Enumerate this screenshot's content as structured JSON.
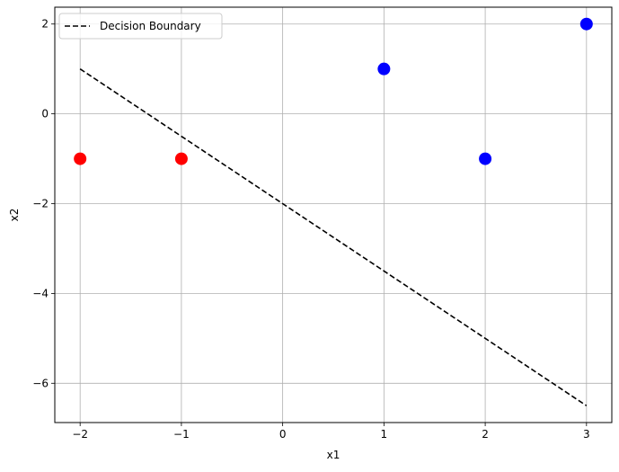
{
  "chart_data": {
    "type": "scatter",
    "title": "",
    "xlabel": "x1",
    "ylabel": "x2",
    "xlim": [
      -2.25,
      3.25
    ],
    "ylim": [
      -6.875,
      2.375
    ],
    "x_ticks": [
      -2,
      -1,
      0,
      1,
      2,
      3
    ],
    "y_ticks": [
      -6,
      -4,
      -2,
      0,
      2
    ],
    "grid": true,
    "legend_placement": "upper-left",
    "points": [
      {
        "x": -2,
        "y": -1,
        "class": "red"
      },
      {
        "x": -1,
        "y": -1,
        "class": "red"
      },
      {
        "x": 1,
        "y": 1,
        "class": "blue"
      },
      {
        "x": 2,
        "y": -1,
        "class": "blue"
      },
      {
        "x": 3,
        "y": 2,
        "class": "blue"
      }
    ],
    "boundary": {
      "name": "Decision Boundary",
      "style": "dashed",
      "color": "#000000",
      "points": [
        {
          "x": -2,
          "y": 1
        },
        {
          "x": 3,
          "y": -6.5
        }
      ]
    },
    "colors": {
      "red": "#ff0000",
      "blue": "#0000ff",
      "grid": "#b0b0b0"
    }
  }
}
